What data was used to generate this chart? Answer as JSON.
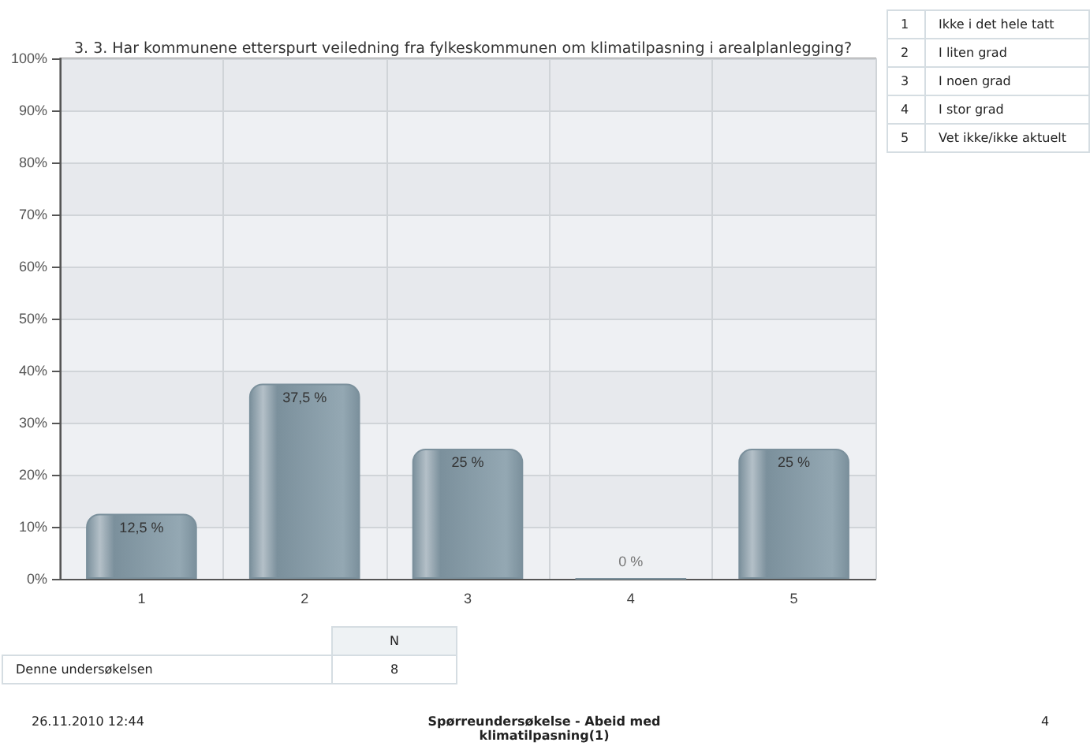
{
  "chart_data": {
    "type": "bar",
    "title": "3. 3. Har kommunene etterspurt veiledning fra fylkeskommunen om klimatilpasning i arealplanlegging?",
    "categories": [
      "1",
      "2",
      "3",
      "4",
      "5"
    ],
    "values": [
      12.5,
      37.5,
      25,
      0,
      25
    ],
    "value_labels": [
      "12,5 %",
      "37,5 %",
      "25 %",
      "0 %",
      "25 %"
    ],
    "color": "#7b909c",
    "ylim": [
      0,
      100
    ],
    "yticks": [
      {
        "value": 0,
        "label": "0%"
      },
      {
        "value": 10,
        "label": "10%"
      },
      {
        "value": 20,
        "label": "20%"
      },
      {
        "value": 30,
        "label": "30%"
      },
      {
        "value": 40,
        "label": "40%"
      },
      {
        "value": 50,
        "label": "50%"
      },
      {
        "value": 60,
        "label": "60%"
      },
      {
        "value": 70,
        "label": "70%"
      },
      {
        "value": 80,
        "label": "80%"
      },
      {
        "value": 90,
        "label": "90%"
      },
      {
        "value": 100,
        "label": "100%"
      }
    ],
    "grid": true,
    "annotations": [
      "1",
      "Ikke i det hele tatt",
      "2",
      "I liten grad",
      "3",
      "I noen grad",
      "4",
      "I stor grad",
      "5",
      "Vet ikke/ikke aktuelt",
      "N",
      "Denne undersøkelsen",
      "8",
      "26.11.2010 12:44",
      "Spørreundersøkelse - Abeid med klimatilpasning(1)",
      "4"
    ]
  }
}
